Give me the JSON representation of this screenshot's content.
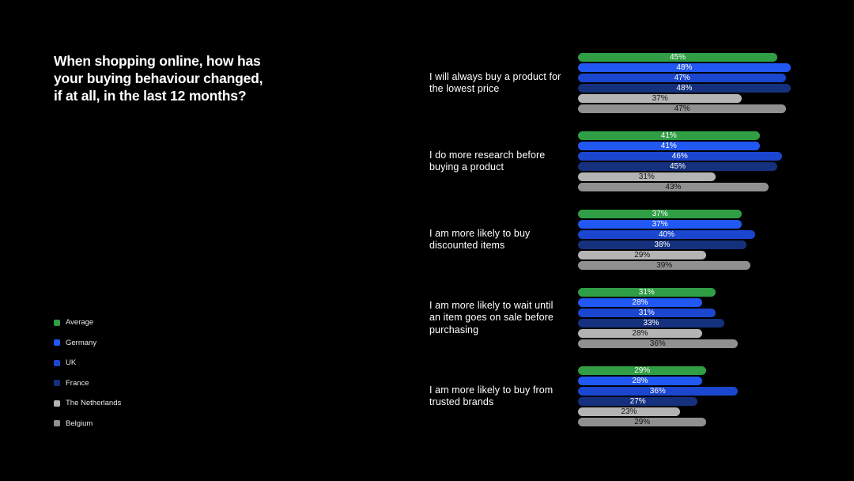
{
  "title": {
    "line1": "When shopping online, how has",
    "line2": "your buying behaviour changed,",
    "line3": "if at all, in the last 12 months?"
  },
  "chart_data": {
    "type": "bar",
    "orientation": "horizontal",
    "value_unit": "%",
    "value_range": [
      0,
      50
    ],
    "grid": false,
    "legend_position": "bottom-left",
    "categories": [
      "I will always buy a product for the lowest price",
      "I do more research before buying a product",
      "I am more likely to buy discounted items",
      "I am more likely to wait until an item goes on sale before purchasing",
      "I am more likely to buy from trusted brands"
    ],
    "series": [
      {
        "name": "Average",
        "color": "#2f9e44",
        "label_color": "#ffffff",
        "values": [
          45,
          41,
          37,
          31,
          29
        ]
      },
      {
        "name": "Germany",
        "color": "#2158f3",
        "label_color": "#ffffff",
        "values": [
          48,
          41,
          37,
          28,
          28
        ]
      },
      {
        "name": "UK",
        "color": "#1b46cf",
        "label_color": "#ffffff",
        "values": [
          47,
          46,
          40,
          31,
          36
        ]
      },
      {
        "name": "France",
        "color": "#15317e",
        "label_color": "#ffffff",
        "values": [
          48,
          45,
          38,
          33,
          27
        ]
      },
      {
        "name": "The Netherlands",
        "color": "#b4b4b4",
        "label_color": "#141414",
        "values": [
          37,
          31,
          29,
          28,
          23
        ]
      },
      {
        "name": "Belgium",
        "color": "#909090",
        "label_color": "#141414",
        "values": [
          47,
          43,
          39,
          36,
          29
        ]
      }
    ]
  }
}
